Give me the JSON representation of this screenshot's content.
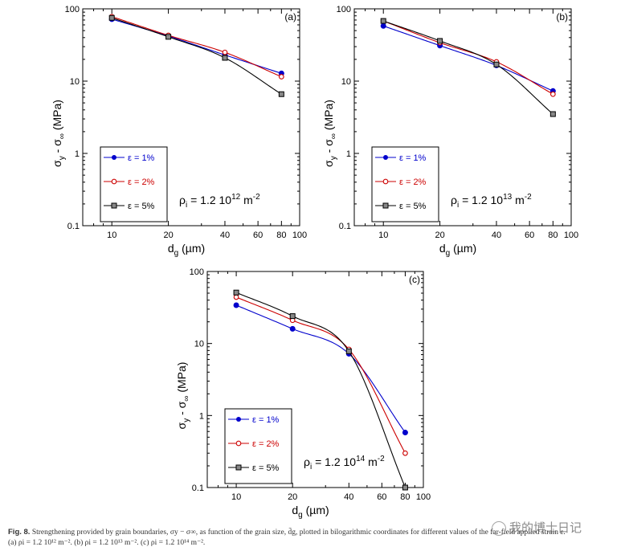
{
  "chart_data": [
    {
      "type": "line",
      "panel": "(a)",
      "xscale": "log",
      "yscale": "log",
      "xlim": [
        7,
        100
      ],
      "ylim": [
        0.1,
        100
      ],
      "xticks": [
        10,
        20,
        40,
        60,
        80,
        100
      ],
      "yticks": [
        0.1,
        1,
        10,
        100
      ],
      "xlabel": "d",
      "xlabel_sub": "g",
      "xlabel_unit": "(µm)",
      "ylabel": "σ",
      "ylabel_sub": "y",
      "ylabel_mid": " - σ",
      "ylabel_sub2": "∞",
      "ylabel_unit": "(MPa)",
      "annotation": {
        "prefix": "ρ",
        "sub": "i",
        "text": " = 1.2 10",
        "exp": "12",
        "unit": " m",
        "unit_exp": "-2"
      },
      "series": [
        {
          "name": "ε = 1%",
          "color": "#0000cc",
          "marker": "filled-circle",
          "x": [
            10,
            20,
            40,
            80
          ],
          "y": [
            72,
            42,
            23,
            12.8
          ]
        },
        {
          "name": "ε = 2%",
          "color": "#cc0000",
          "marker": "open-circle",
          "x": [
            10,
            20,
            40,
            80
          ],
          "y": [
            78,
            43,
            25,
            11.5
          ]
        },
        {
          "name": "ε = 5%",
          "color": "#000000",
          "marker": "square",
          "x": [
            10,
            20,
            40,
            80
          ],
          "y": [
            75,
            41,
            21,
            6.6
          ]
        }
      ]
    },
    {
      "type": "line",
      "panel": "(b)",
      "xscale": "log",
      "yscale": "log",
      "xlim": [
        7,
        100
      ],
      "ylim": [
        0.1,
        100
      ],
      "xticks": [
        10,
        20,
        40,
        60,
        80,
        100
      ],
      "yticks": [
        0.1,
        1,
        10,
        100
      ],
      "xlabel": "d",
      "xlabel_sub": "g",
      "xlabel_unit": "(µm)",
      "ylabel": "σ",
      "ylabel_sub": "y",
      "ylabel_mid": " - σ",
      "ylabel_sub2": "∞",
      "ylabel_unit": "(MPa)",
      "annotation": {
        "prefix": "ρ",
        "sub": "i",
        "text": " = 1.2 10",
        "exp": "13",
        "unit": " m",
        "unit_exp": "-2"
      },
      "series": [
        {
          "name": "ε = 1%",
          "color": "#0000cc",
          "marker": "filled-circle",
          "x": [
            10,
            20,
            40,
            80
          ],
          "y": [
            58,
            31,
            16.5,
            7.3
          ]
        },
        {
          "name": "ε = 2%",
          "color": "#cc0000",
          "marker": "open-circle",
          "x": [
            10,
            20,
            40,
            80
          ],
          "y": [
            68,
            34,
            18.5,
            6.6
          ]
        },
        {
          "name": "ε = 5%",
          "color": "#000000",
          "marker": "square",
          "x": [
            10,
            20,
            40,
            80
          ],
          "y": [
            68,
            36,
            17,
            3.5
          ]
        }
      ]
    },
    {
      "type": "line",
      "panel": "(c)",
      "xscale": "log",
      "yscale": "log",
      "xlim": [
        7,
        100
      ],
      "ylim": [
        0.1,
        100
      ],
      "xticks": [
        10,
        20,
        40,
        60,
        80,
        100
      ],
      "yticks": [
        0.1,
        1,
        10,
        100
      ],
      "xlabel": "d",
      "xlabel_sub": "g",
      "xlabel_unit": "(µm)",
      "ylabel": "σ",
      "ylabel_sub": "y",
      "ylabel_mid": " - σ",
      "ylabel_sub2": "∞",
      "ylabel_unit": "(MPa)",
      "annotation": {
        "prefix": "ρ",
        "sub": "i",
        "text": " = 1.2 10",
        "exp": "14",
        "unit": " m",
        "unit_exp": "-2"
      },
      "series": [
        {
          "name": "ε = 1%",
          "color": "#0000cc",
          "marker": "filled-circle",
          "x": [
            10,
            20,
            40,
            80
          ],
          "y": [
            34,
            16,
            7.2,
            0.58
          ]
        },
        {
          "name": "ε = 2%",
          "color": "#cc0000",
          "marker": "open-circle",
          "x": [
            10,
            20,
            40,
            80
          ],
          "y": [
            44,
            21,
            8.3,
            0.3
          ]
        },
        {
          "name": "ε = 5%",
          "color": "#000000",
          "marker": "square",
          "x": [
            10,
            20,
            40,
            80
          ],
          "y": [
            51,
            24,
            7.8,
            0.1
          ]
        }
      ]
    }
  ],
  "caption": {
    "label": "Fig. 8.",
    "text": " Strengthening provided by grain boundaries, σy − σ∞, as function of the grain size, d̄g, plotted in bilogarithmic coordinates for different values of the far-field applied strain ε.",
    "line2": "(a) ρi = 1.2 10¹² m⁻². (b) ρi = 1.2 10¹³ m⁻². (c) ρi = 1.2 10¹⁴ m⁻²."
  },
  "watermark": "我的博士日记"
}
